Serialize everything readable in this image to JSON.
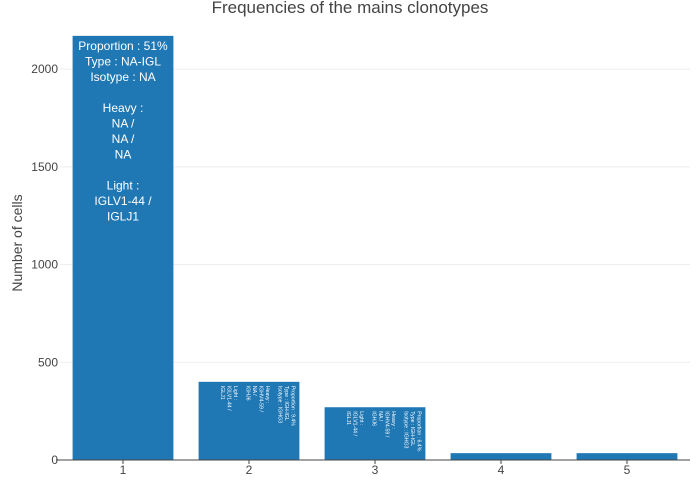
{
  "chart_data": {
    "type": "bar",
    "title": "Frequencies of the mains clonotypes",
    "xlabel": "",
    "ylabel": "Number of cells",
    "categories": [
      "1",
      "2",
      "3",
      "4",
      "5"
    ],
    "values": [
      2170,
      400,
      270,
      35,
      35
    ],
    "ylim": [
      0,
      2200
    ],
    "yticks": [
      0,
      500,
      1000,
      1500,
      2000
    ],
    "grid": true,
    "color": "#1f77b4",
    "bar_labels": [
      [
        "Proportion : 51%",
        "Type : NA-IGL",
        "Isotype : NA",
        "",
        "Heavy :",
        "NA /",
        "NA /",
        "NA",
        "",
        "Light :",
        "IGLV1-44 /",
        "IGLJ1"
      ],
      [
        "Proportion : 9.4%",
        "Type : IGH-IGL",
        "Isotype : IGHG3",
        "",
        "Heavy :",
        "IGHV4-59 /",
        "NA /",
        "IGHJ6",
        "",
        "Light :",
        "IGLV1-44 /",
        "IGLJ1"
      ],
      [
        "Proportion : 6.4%",
        "Type : IGH-IGL",
        "Isotype : IGHG3",
        "",
        "Heavy :",
        "IGHV4-59 /",
        "NA /",
        "IGHJ6",
        "",
        "Light :",
        "IGLV1-44 /",
        "IGLJ1"
      ],
      [],
      []
    ]
  }
}
